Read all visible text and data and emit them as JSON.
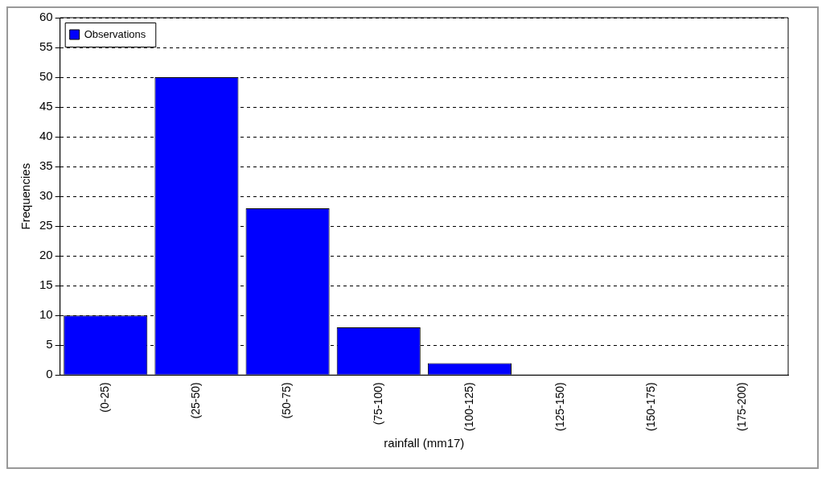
{
  "chart_data": {
    "type": "bar",
    "xlabel": "rainfall (mm17)",
    "ylabel": "Frequencies",
    "categories": [
      "(0-25)",
      "(25-50)",
      "(50-75)",
      "(75-100)",
      "(100-125)",
      "(125-150)",
      "(150-175)",
      "(175-200)"
    ],
    "series": [
      {
        "name": "Observations",
        "color": "#0000ff",
        "values": [
          10,
          50,
          28,
          8,
          2,
          0,
          0,
          0
        ]
      }
    ],
    "ylim": [
      0,
      60
    ],
    "yticks": [
      0,
      5,
      10,
      15,
      20,
      25,
      30,
      35,
      40,
      45,
      50,
      55,
      60
    ],
    "grid": "y",
    "legend": "top left"
  }
}
